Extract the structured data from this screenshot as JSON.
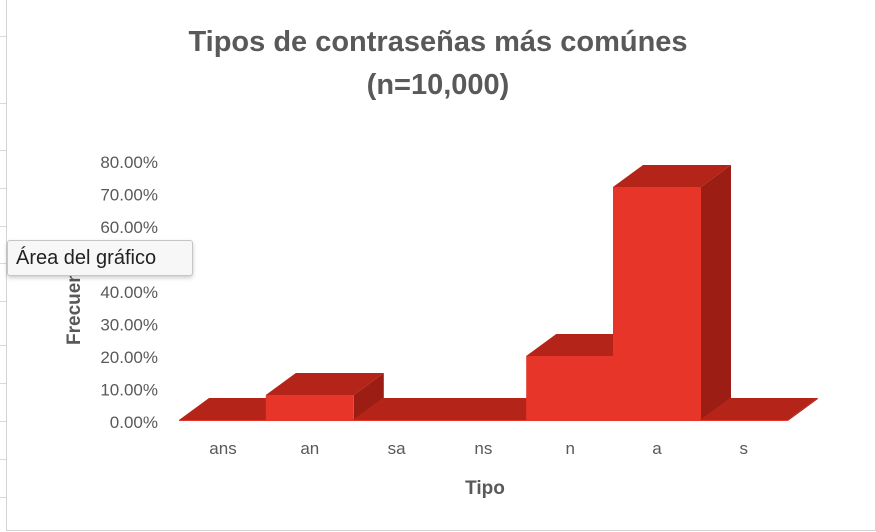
{
  "chart_data": {
    "type": "bar",
    "title": "Tipos de contraseñas más comúnes",
    "subtitle": "(n=10,000)",
    "xlabel": "Tipo",
    "ylabel": "Frecuencia",
    "categories": [
      "ans",
      "an",
      "sa",
      "ns",
      "n",
      "a",
      "s"
    ],
    "values": [
      0.2,
      8.0,
      0.1,
      0.1,
      20.0,
      72.0,
      0.1
    ],
    "ylim": [
      0,
      80
    ],
    "yticks": [
      "0.00%",
      "10.00%",
      "20.00%",
      "30.00%",
      "40.00%",
      "50.00%",
      "60.00%",
      "70.00%",
      "80.00%"
    ],
    "grid": false,
    "style": "3d-column",
    "colors": {
      "front": "#e8352a",
      "top": "#b52418",
      "side": "#9b1d13"
    }
  },
  "tooltip": {
    "text": "Área del gráfico"
  }
}
